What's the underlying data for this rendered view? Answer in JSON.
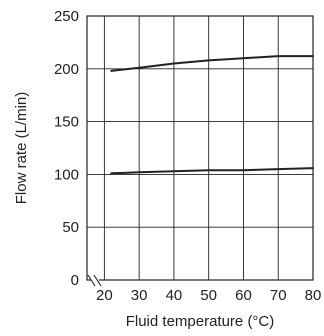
{
  "chart_data": {
    "type": "line",
    "title": "",
    "xlabel": "Fluid temperature (°C)",
    "ylabel": "Flow rate (L/min)",
    "xlim": [
      15,
      80
    ],
    "ylim": [
      0,
      250
    ],
    "x_ticks": [
      20,
      30,
      40,
      50,
      60,
      70,
      80
    ],
    "y_ticks": [
      0,
      50,
      100,
      150,
      200,
      250
    ],
    "x_axis_break": true,
    "grid": true,
    "legend": "none",
    "line_color": "#222222",
    "series": [
      {
        "x": [
          22,
          30,
          40,
          50,
          60,
          70,
          80
        ],
        "values": [
          198,
          201,
          205,
          208,
          210,
          212,
          212
        ]
      },
      {
        "x": [
          22,
          30,
          40,
          50,
          60,
          70,
          80
        ],
        "values": [
          101,
          102,
          103,
          104,
          104,
          105,
          106
        ]
      }
    ]
  }
}
